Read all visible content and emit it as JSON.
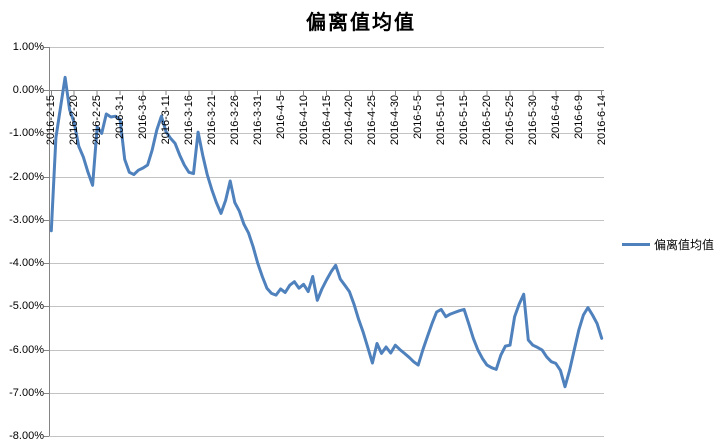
{
  "chart_data": {
    "type": "line",
    "title": "偏离值均值",
    "legend_position": "right",
    "grid": true,
    "ylim": [
      -8,
      1
    ],
    "y_ticks": [
      "1.00%",
      "0.00%",
      "-1.00%",
      "-2.00%",
      "-3.00%",
      "-4.00%",
      "-5.00%",
      "-6.00%",
      "-7.00%",
      "-8.00%"
    ],
    "x_tick_every": 5,
    "x": [
      "2016-2-15",
      "2016-2-16",
      "2016-2-17",
      "2016-2-18",
      "2016-2-19",
      "2016-2-20",
      "2016-2-21",
      "2016-2-22",
      "2016-2-23",
      "2016-2-24",
      "2016-2-25",
      "2016-2-26",
      "2016-2-27",
      "2016-2-28",
      "2016-2-29",
      "2016-3-1",
      "2016-3-2",
      "2016-3-3",
      "2016-3-4",
      "2016-3-5",
      "2016-3-6",
      "2016-3-7",
      "2016-3-8",
      "2016-3-9",
      "2016-3-10",
      "2016-3-11",
      "2016-3-12",
      "2016-3-13",
      "2016-3-14",
      "2016-3-15",
      "2016-3-16",
      "2016-3-17",
      "2016-3-18",
      "2016-3-19",
      "2016-3-20",
      "2016-3-21",
      "2016-3-22",
      "2016-3-23",
      "2016-3-24",
      "2016-3-25",
      "2016-3-26",
      "2016-3-27",
      "2016-3-28",
      "2016-3-29",
      "2016-3-30",
      "2016-3-31",
      "2016-4-1",
      "2016-4-2",
      "2016-4-3",
      "2016-4-4",
      "2016-4-5",
      "2016-4-6",
      "2016-4-7",
      "2016-4-8",
      "2016-4-9",
      "2016-4-10",
      "2016-4-11",
      "2016-4-12",
      "2016-4-13",
      "2016-4-14",
      "2016-4-15",
      "2016-4-16",
      "2016-4-17",
      "2016-4-18",
      "2016-4-19",
      "2016-4-20",
      "2016-4-21",
      "2016-4-22",
      "2016-4-23",
      "2016-4-24",
      "2016-4-25",
      "2016-4-26",
      "2016-4-27",
      "2016-4-28",
      "2016-4-29",
      "2016-4-30",
      "2016-5-1",
      "2016-5-2",
      "2016-5-3",
      "2016-5-4",
      "2016-5-5",
      "2016-5-6",
      "2016-5-7",
      "2016-5-8",
      "2016-5-9",
      "2016-5-10",
      "2016-5-11",
      "2016-5-12",
      "2016-5-13",
      "2016-5-14",
      "2016-5-15",
      "2016-5-16",
      "2016-5-17",
      "2016-5-18",
      "2016-5-19",
      "2016-5-20",
      "2016-5-21",
      "2016-5-22",
      "2016-5-23",
      "2016-5-24",
      "2016-5-25",
      "2016-5-26",
      "2016-5-27",
      "2016-5-28",
      "2016-5-29",
      "2016-5-30",
      "2016-5-31",
      "2016-6-1",
      "2016-6-2",
      "2016-6-3",
      "2016-6-4",
      "2016-6-5",
      "2016-6-6",
      "2016-6-7",
      "2016-6-8",
      "2016-6-9",
      "2016-6-10",
      "2016-6-11",
      "2016-6-12",
      "2016-6-13",
      "2016-6-14"
    ],
    "series": [
      {
        "name": "偏离值均值",
        "values": [
          -3.25,
          -1.1,
          -0.4,
          0.3,
          -0.45,
          -0.75,
          -1.3,
          -1.55,
          -1.9,
          -2.2,
          -0.85,
          -1.0,
          -0.55,
          -0.62,
          -0.6,
          -0.68,
          -1.6,
          -1.9,
          -1.95,
          -1.85,
          -1.8,
          -1.73,
          -1.38,
          -0.92,
          -0.6,
          -0.96,
          -1.11,
          -1.23,
          -1.5,
          -1.73,
          -1.9,
          -1.93,
          -0.97,
          -1.5,
          -1.95,
          -2.3,
          -2.6,
          -2.85,
          -2.55,
          -2.1,
          -2.6,
          -2.8,
          -3.1,
          -3.3,
          -3.62,
          -4.0,
          -4.31,
          -4.58,
          -4.7,
          -4.74,
          -4.6,
          -4.68,
          -4.51,
          -4.43,
          -4.58,
          -4.49,
          -4.66,
          -4.31,
          -4.86,
          -4.6,
          -4.39,
          -4.2,
          -4.05,
          -4.37,
          -4.51,
          -4.66,
          -4.95,
          -5.3,
          -5.6,
          -5.95,
          -6.31,
          -5.86,
          -6.09,
          -5.94,
          -6.08,
          -5.9,
          -6.0,
          -6.09,
          -6.18,
          -6.28,
          -6.36,
          -6.01,
          -5.7,
          -5.4,
          -5.13,
          -5.07,
          -5.24,
          -5.18,
          -5.14,
          -5.1,
          -5.07,
          -5.4,
          -5.74,
          -6.01,
          -6.21,
          -6.36,
          -6.42,
          -6.46,
          -6.13,
          -5.92,
          -5.9,
          -5.24,
          -4.95,
          -4.72,
          -5.78,
          -5.9,
          -5.95,
          -6.01,
          -6.17,
          -6.28,
          -6.32,
          -6.48,
          -6.86,
          -6.48,
          -6.01,
          -5.55,
          -5.2,
          -5.03,
          -5.2,
          -5.4,
          -5.74
        ]
      }
    ],
    "colors": {
      "line": "#4F81BD",
      "grid": "#C3C3C3",
      "axis": "#848484",
      "text": "#000000",
      "background": "#FFFFFF"
    }
  }
}
